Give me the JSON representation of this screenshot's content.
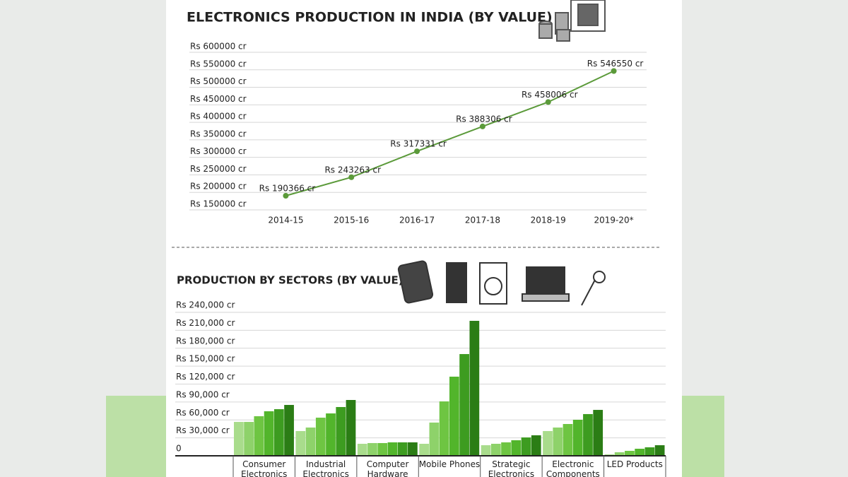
{
  "chart_data": [
    {
      "type": "line",
      "title": "ELECTRONICS PRODUCTION IN INDIA (BY VALUE)",
      "categories": [
        "2014-15",
        "2015-16",
        "2016-17",
        "2017-18",
        "2018-19",
        "2019-20*"
      ],
      "values": [
        190366,
        243263,
        317331,
        388306,
        458006,
        546550
      ],
      "value_labels": [
        "Rs 190366 cr",
        "Rs 243263 cr",
        "Rs 317331 cr",
        "Rs 388306 cr",
        "Rs 458006 cr",
        "Rs 546550 cr"
      ],
      "color": "#5b9a3a",
      "ylim": [
        150000,
        600000
      ],
      "yticks": [
        {
          "value": 150000,
          "label": "Rs 150000 cr"
        },
        {
          "value": 200000,
          "label": "Rs 200000 cr"
        },
        {
          "value": 250000,
          "label": "Rs 250000 cr"
        },
        {
          "value": 300000,
          "label": "Rs 300000 cr"
        },
        {
          "value": 350000,
          "label": "Rs 350000 cr"
        },
        {
          "value": 400000,
          "label": "Rs 400000 cr"
        },
        {
          "value": 450000,
          "label": "Rs 450000 cr"
        },
        {
          "value": 500000,
          "label": "Rs 500000 cr"
        },
        {
          "value": 550000,
          "label": "Rs 550000 cr"
        },
        {
          "value": 600000,
          "label": "Rs 600000 cr"
        }
      ],
      "grid": true
    },
    {
      "type": "bar",
      "title": "PRODUCTION BY SECTORS  (BY VALUE)",
      "categories": [
        "Consumer Electronics",
        "Industrial Electronics",
        "Computer Hardware",
        "Mobile Phones",
        "Strategic Electronics",
        "Electronic Components",
        "LED Products"
      ],
      "series": [
        {
          "color": "#a9dc8c",
          "values": [
            56700,
            41400,
            20100,
            20100,
            17700,
            41400,
            2400
          ]
        },
        {
          "color": "#8ed26a",
          "values": [
            56700,
            47300,
            21300,
            55600,
            20100,
            47300,
            5900
          ]
        },
        {
          "color": "#6ec542",
          "values": [
            66200,
            63800,
            21300,
            91000,
            22500,
            53200,
            8300
          ]
        },
        {
          "color": "#52b52b",
          "values": [
            74500,
            70900,
            22500,
            132400,
            26000,
            60300,
            11800
          ]
        },
        {
          "color": "#3d9c20",
          "values": [
            78000,
            81600,
            22500,
            170200,
            30700,
            69800,
            14200
          ]
        },
        {
          "color": "#2b7d15",
          "values": [
            85100,
            93400,
            22500,
            225800,
            34300,
            76800,
            17700
          ]
        }
      ],
      "ylim": [
        0,
        240000
      ],
      "yticks": [
        0,
        {
          "value": 30000,
          "label": "Rs 30,000 cr"
        },
        {
          "value": 60000,
          "label": "Rs 60,000 cr"
        },
        {
          "value": 90000,
          "label": "Rs 90,000 cr"
        },
        {
          "value": 120000,
          "label": "Rs 120,000 cr"
        },
        {
          "value": 150000,
          "label": "Rs 150,000 cr"
        },
        {
          "value": 180000,
          "label": "Rs 180,000 cr"
        },
        {
          "value": 210000,
          "label": "Rs 210,000 cr"
        },
        {
          "value": 240000,
          "label": "Rs 240,000 cr"
        }
      ],
      "grid": true
    }
  ]
}
